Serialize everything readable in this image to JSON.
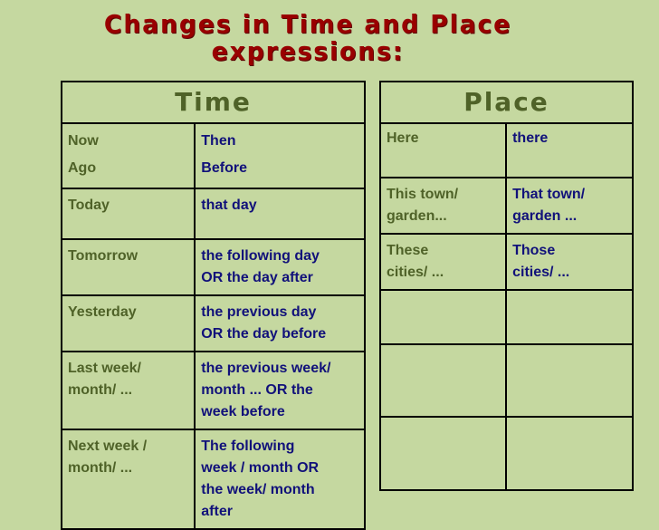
{
  "title_line1": "Changes in Time and Place",
  "title_line2": "expressions:",
  "colors": {
    "background": "#c5d8a0",
    "title": "#990000",
    "header": "#4f6228",
    "original": "#4f6228",
    "changed": "#11117a"
  },
  "time": {
    "header": "Time",
    "rows": [
      {
        "from": [
          "Now",
          "Ago"
        ],
        "to": [
          "Then",
          "Before"
        ]
      },
      {
        "from": [
          "Today"
        ],
        "to": [
          "that day"
        ]
      },
      {
        "from": [
          "Tomorrow"
        ],
        "to": [
          "the following day",
          "OR the day after"
        ]
      },
      {
        "from": [
          "Yesterday"
        ],
        "to": [
          "the previous  day",
          "OR the day before"
        ]
      },
      {
        "from": [
          "Last week/",
          "month/ ..."
        ],
        "to": [
          "the previous week/",
          "month ... OR the",
          "week before"
        ]
      },
      {
        "from": [
          "Next week /",
          "month/ ..."
        ],
        "to": [
          "The following",
          "week / month OR",
          "the week/ month",
          "after"
        ]
      }
    ]
  },
  "place": {
    "header": "Place",
    "rows": [
      {
        "from": [
          "Here"
        ],
        "to": [
          "there"
        ]
      },
      {
        "from": [
          "This town/",
          "garden..."
        ],
        "to": [
          "That town/",
          "garden ..."
        ]
      },
      {
        "from": [
          "These",
          "cities/ ..."
        ],
        "to": [
          "Those",
          "cities/ ..."
        ]
      },
      {
        "from": [],
        "to": []
      },
      {
        "from": [],
        "to": []
      },
      {
        "from": [],
        "to": []
      }
    ]
  }
}
